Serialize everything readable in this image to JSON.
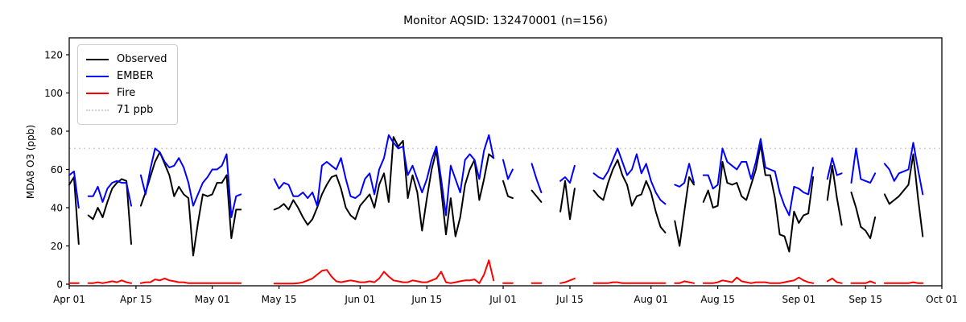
{
  "title": "Monitor AQSID: 132470001 (n=156)",
  "axes": {
    "ylabel": "MDA8 O3 (ppb)",
    "yticks": [
      0,
      20,
      40,
      60,
      80,
      100,
      120
    ],
    "ylim": [
      -4,
      129
    ],
    "xtick_labels": [
      "Apr 01",
      "Apr 15",
      "May 01",
      "May 15",
      "Jun 01",
      "Jun 15",
      "Jul 01",
      "Jul 15",
      "Aug 01",
      "Aug 15",
      "Sep 01",
      "Sep 15",
      "Oct 01"
    ],
    "xtick_days": [
      0,
      14,
      30,
      44,
      61,
      75,
      91,
      105,
      122,
      136,
      153,
      167,
      183
    ],
    "x_day_span": 183,
    "spine_color": "#000000",
    "background": "#ffffff"
  },
  "threshold": {
    "value": 71,
    "label": "71 ppb",
    "color": "#d0d0d0"
  },
  "legend": [
    {
      "label": "Observed",
      "color": "#000000",
      "style": "solid"
    },
    {
      "label": "EMBER",
      "color": "#0000ff",
      "style": "solid"
    },
    {
      "label": "Fire",
      "color": "#ff0000",
      "style": "solid"
    },
    {
      "label": "71 ppb",
      "color": "#d0d0d0",
      "style": "dotted"
    }
  ],
  "chart_data": {
    "type": "line",
    "x_unit": "days since Apr 01 (daily values, null = missing day)",
    "x_start_label": "Apr 01",
    "x_end_label": "Oct 01",
    "title": "Monitor AQSID: 132470001 (n=156)",
    "ylabel": "MDA8 O3 (ppb)",
    "threshold_ppb": 71,
    "n_observations": 156,
    "series": [
      {
        "name": "Observed",
        "color": "#000000",
        "values": [
          52,
          56,
          21,
          null,
          36,
          34,
          40,
          35,
          43,
          50,
          53,
          55,
          54,
          21,
          null,
          41,
          48,
          56,
          64,
          69,
          63,
          57,
          46,
          51,
          47,
          45,
          15,
          32,
          47,
          46,
          47,
          53,
          53,
          57,
          24,
          39,
          39,
          null,
          null,
          null,
          null,
          null,
          null,
          39,
          40,
          42,
          39,
          44,
          40,
          35,
          31,
          34,
          40,
          47,
          52,
          56,
          57,
          50,
          40,
          36,
          34,
          41,
          44,
          47,
          40,
          52,
          58,
          43,
          77,
          72,
          75,
          45,
          57,
          48,
          28,
          45,
          60,
          70,
          50,
          26,
          45,
          25,
          35,
          52,
          60,
          65,
          44,
          55,
          68,
          66,
          null,
          54,
          46,
          45,
          null,
          null,
          null,
          49,
          46,
          43,
          null,
          null,
          null,
          38,
          54,
          34,
          50,
          null,
          null,
          null,
          49,
          46,
          44,
          53,
          60,
          65,
          57,
          52,
          41,
          46,
          47,
          54,
          48,
          38,
          30,
          27,
          null,
          33,
          20,
          38,
          56,
          52,
          null,
          43,
          49,
          40,
          41,
          64,
          53,
          52,
          53,
          46,
          44,
          52,
          60,
          73,
          57,
          57,
          45,
          26,
          25,
          17,
          38,
          32,
          36,
          37,
          56,
          null,
          null,
          44,
          62,
          45,
          31,
          null,
          48,
          40,
          30,
          28,
          24,
          35,
          null,
          47,
          42,
          44,
          46,
          49,
          52,
          68,
          45,
          25
        ]
      },
      {
        "name": "EMBER",
        "color": "#0000ff",
        "values": [
          57,
          59,
          40,
          null,
          46,
          46,
          51,
          43,
          50,
          53,
          54,
          53,
          53,
          41,
          null,
          57,
          47,
          60,
          71,
          69,
          64,
          61,
          62,
          66,
          61,
          53,
          41,
          47,
          53,
          56,
          60,
          60,
          62,
          68,
          35,
          46,
          47,
          null,
          null,
          null,
          null,
          null,
          null,
          55,
          50,
          53,
          52,
          46,
          46,
          48,
          45,
          48,
          41,
          62,
          64,
          62,
          60,
          66,
          55,
          46,
          45,
          47,
          55,
          58,
          47,
          60,
          66,
          78,
          74,
          71,
          72,
          57,
          62,
          55,
          48,
          55,
          65,
          72,
          55,
          36,
          62,
          55,
          48,
          65,
          68,
          65,
          55,
          70,
          78,
          66,
          null,
          65,
          55,
          60,
          null,
          null,
          null,
          63,
          55,
          48,
          null,
          null,
          null,
          54,
          56,
          53,
          62,
          null,
          null,
          null,
          58,
          56,
          55,
          59,
          65,
          71,
          64,
          57,
          60,
          68,
          58,
          63,
          54,
          48,
          44,
          42,
          null,
          52,
          51,
          53,
          63,
          53,
          null,
          57,
          57,
          50,
          52,
          71,
          64,
          62,
          60,
          64,
          64,
          55,
          64,
          76,
          61,
          60,
          59,
          48,
          41,
          36,
          51,
          50,
          48,
          47,
          61,
          null,
          null,
          55,
          66,
          57,
          58,
          null,
          53,
          71,
          55,
          54,
          53,
          58,
          null,
          63,
          60,
          54,
          58,
          59,
          60,
          74,
          60,
          47
        ]
      },
      {
        "name": "Fire",
        "color": "#ff0000",
        "values": [
          0.5,
          0.5,
          0.5,
          null,
          0.5,
          0.5,
          1,
          0.5,
          1,
          1.5,
          1,
          2,
          1,
          0.5,
          null,
          0.5,
          1,
          1,
          2.5,
          2,
          3,
          2,
          1.5,
          1,
          1,
          0.5,
          0.5,
          0.5,
          0.5,
          0.5,
          0.5,
          0.5,
          0.5,
          0.5,
          0.5,
          0.5,
          0.5,
          null,
          null,
          null,
          null,
          null,
          null,
          0.3,
          0.3,
          0.3,
          0.3,
          0.3,
          0.5,
          1,
          2,
          3,
          5,
          7,
          7.5,
          4,
          1.5,
          1,
          1.5,
          2,
          1.5,
          1,
          1,
          1.5,
          1,
          3,
          6.5,
          4,
          2,
          1.5,
          1,
          1,
          2,
          1.5,
          1,
          1,
          2,
          3,
          6.5,
          1,
          0.5,
          1,
          1.5,
          2,
          2,
          2.5,
          0.5,
          5,
          12.5,
          2,
          null,
          0.5,
          0.5,
          0.5,
          null,
          null,
          null,
          0.5,
          0.5,
          0.5,
          null,
          null,
          null,
          0.5,
          1,
          2,
          3,
          null,
          null,
          null,
          0.5,
          0.5,
          0.5,
          0.5,
          1,
          1,
          0.5,
          0.5,
          0.5,
          0.5,
          0.5,
          0.5,
          0.5,
          0.5,
          0.5,
          0.5,
          null,
          0.5,
          0.5,
          1.5,
          1,
          0.5,
          null,
          0.5,
          0.5,
          0.5,
          1,
          2,
          1.5,
          1,
          3.5,
          1.5,
          1,
          0.5,
          1,
          1,
          1,
          0.5,
          0.5,
          0.5,
          1,
          1.5,
          2,
          3.5,
          2,
          1,
          0.5,
          null,
          null,
          1.5,
          3,
          1,
          0.5,
          null,
          0.5,
          0.5,
          0.5,
          0.5,
          1.5,
          0.5,
          null,
          0.5,
          0.5,
          0.5,
          0.5,
          0.5,
          0.5,
          1,
          0.5,
          0.5
        ]
      }
    ]
  }
}
